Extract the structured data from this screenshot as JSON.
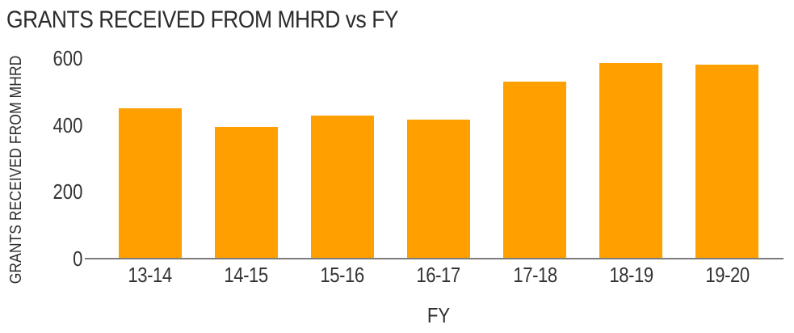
{
  "chart_data": {
    "type": "bar",
    "title": "GRANTS RECEIVED FROM MHRD vs FY",
    "xlabel": "FY",
    "ylabel": "GRANTS RECEIVED FROM MHRD",
    "categories": [
      "13-14",
      "14-15",
      "15-16",
      "16-17",
      "17-18",
      "18-19",
      "19-20"
    ],
    "values": [
      450,
      395,
      428,
      415,
      530,
      585,
      580
    ],
    "ylim": [
      0,
      600
    ],
    "yticks": [
      0,
      200,
      400,
      600
    ],
    "grid": false,
    "legend_position": "none",
    "bar_color": "#FFA000"
  },
  "colors": {
    "bar": "#FFA000",
    "axis_line": "#7d7d7d",
    "text": "#333333",
    "background": "#ffffff"
  }
}
